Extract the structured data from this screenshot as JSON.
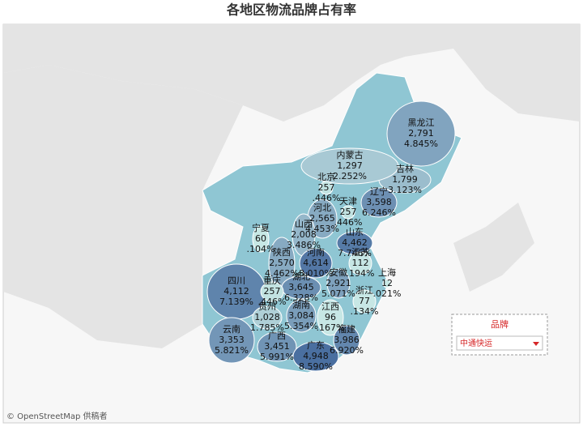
{
  "title": "各地区物流品牌占有率",
  "legend": {
    "title": "品牌",
    "selected": "中通快运"
  },
  "attribution": "© OpenStreetMap 供稿者",
  "regions": [
    {
      "name": "黑龙江",
      "orders": {
        "value": 2791,
        "label": "2,791"
      },
      "share": {
        "value": 4.845,
        "label": "4.845%"
      }
    },
    {
      "name": "吉林",
      "orders": {
        "value": 1799,
        "label": "1,799"
      },
      "share": {
        "value": 3.123,
        "label": "3.123%"
      }
    },
    {
      "name": "辽宁",
      "orders": {
        "value": 3598,
        "label": "3,598"
      },
      "share": {
        "value": 6.246,
        "label": "6.246%"
      }
    },
    {
      "name": "内蒙古",
      "orders": {
        "value": 1297,
        "label": "1,297"
      },
      "share": {
        "value": 2.252,
        "label": "2.252%"
      }
    },
    {
      "name": "北京",
      "orders": 257,
      "share": {
        "value": 0.446,
        "label": ".446%"
      }
    },
    {
      "name": "天津",
      "orders": 257,
      "share": {
        "value": 0.446,
        "label": ".446%"
      }
    },
    {
      "name": "河北",
      "orders": {
        "value": 2565,
        "label": "2,565"
      },
      "share": {
        "value": 4.453,
        "label": "4.453%"
      }
    },
    {
      "name": "山西",
      "orders": {
        "value": 2008,
        "label": "2,008"
      },
      "share": {
        "value": 3.486,
        "label": "3.486%"
      }
    },
    {
      "name": "山东",
      "orders": {
        "value": 4462,
        "label": "4,462"
      },
      "share": {
        "value": 7.746,
        "label": "7.746%"
      }
    },
    {
      "name": "宁夏",
      "orders": 60,
      "share": {
        "value": 0.104,
        "label": ".104%"
      }
    },
    {
      "name": "陕西",
      "orders": {
        "value": 2570,
        "label": "2,570"
      },
      "share": {
        "value": 4.462,
        "label": "4.462%"
      }
    },
    {
      "name": "河南",
      "orders": {
        "value": 4614,
        "label": "4,614"
      },
      "share": {
        "value": 8.01,
        "label": "8.010%"
      }
    },
    {
      "name": "江苏",
      "orders": 112,
      "share": {
        "value": 0.194,
        "label": ".194%"
      }
    },
    {
      "name": "上海",
      "orders": 12,
      "share": {
        "value": 0.021,
        "label": ".021%"
      }
    },
    {
      "name": "安徽",
      "orders": {
        "value": 2921,
        "label": "2,921"
      },
      "share": {
        "value": 5.071,
        "label": "5.071%"
      }
    },
    {
      "name": "湖北",
      "orders": {
        "value": 3645,
        "label": "3,645"
      },
      "share": {
        "value": 6.328,
        "label": "6.328%"
      }
    },
    {
      "name": "浙江",
      "orders": 77,
      "share": {
        "value": 0.134,
        "label": ".134%"
      }
    },
    {
      "name": "四川",
      "orders": {
        "value": 4112,
        "label": "4,112"
      },
      "share": {
        "value": 7.139,
        "label": "7.139%"
      }
    },
    {
      "name": "重庆",
      "orders": 257,
      "share": {
        "value": 0.446,
        "label": ".446%"
      }
    },
    {
      "name": "贵州",
      "orders": {
        "value": 1028,
        "label": "1,028"
      },
      "share": {
        "value": 1.785,
        "label": "1.785%"
      }
    },
    {
      "name": "湖南",
      "orders": {
        "value": 3084,
        "label": "3,084"
      },
      "share": {
        "value": 5.354,
        "label": "5.354%"
      }
    },
    {
      "name": "江西",
      "orders": 96,
      "share": {
        "value": 0.167,
        "label": ".167%"
      }
    },
    {
      "name": "福建",
      "orders": {
        "value": 3986,
        "label": "3,986"
      },
      "share": {
        "value": 6.92,
        "label": "6.920%"
      }
    },
    {
      "name": "云南",
      "orders": {
        "value": 3353,
        "label": "3,353"
      },
      "share": {
        "value": 5.821,
        "label": "5.821%"
      }
    },
    {
      "name": "广西",
      "orders": {
        "value": 3451,
        "label": "3,451"
      },
      "share": {
        "value": 5.991,
        "label": "5.991%"
      }
    },
    {
      "name": "广东",
      "orders": {
        "value": 4948,
        "label": "4,948"
      },
      "share": {
        "value": 8.59,
        "label": "8.590%"
      }
    }
  ]
}
